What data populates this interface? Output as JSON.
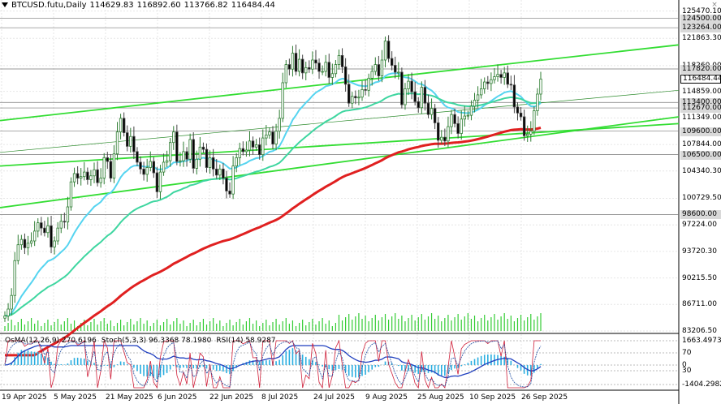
{
  "header": {
    "symbol": "BTCUSD.futu,Daily",
    "open": "114629.83",
    "high": "116892.60",
    "low": "113766.82",
    "close": "116484.44"
  },
  "indicators": {
    "osma": "OsMA(12,26,9) 270.6196",
    "stoch": "Stoch(5,3,3) 96.3368 78.1980",
    "rsi": "RSI(14) 58.9287"
  },
  "price_axis": {
    "ticks": [
      "125470.10",
      "121863.30",
      "118260.00",
      "114859.00",
      "111349.00",
      "107844.00",
      "104340.30",
      "100729.50",
      "97224.00",
      "93720.30",
      "90215.50",
      "86711.00",
      "83206.50"
    ],
    "level_tags": [
      "124500.00",
      "123264.00",
      "117820.00",
      "113400.00",
      "112670.00",
      "109600.00",
      "106500.00",
      "98600.00"
    ],
    "current_price": "116484.44"
  },
  "indicator_axis": {
    "ticks": [
      "1663.4973",
      "70",
      "30",
      "0",
      "-1404.2982"
    ]
  },
  "time_axis": {
    "ticks": [
      "19 Apr 2025",
      "5 May 2025",
      "21 May 2025",
      "6 Jun 2025",
      "22 Jun 2025",
      "8 Jul 2025",
      "24 Jul 2025",
      "9 Aug 2025",
      "25 Aug 2025",
      "10 Sep 2025",
      "26 Sep 2025"
    ]
  },
  "colors": {
    "candle_up": "#2e7d32",
    "candle_down": "#444444",
    "ema_fast": "#55d4f0",
    "ema_mid": "#3ed6a0",
    "ema_slow": "#e02020",
    "channel": "#33dd33",
    "volume": "#33cc33",
    "osma_hist": "#2aaee0",
    "macd_line": "#1f3fbf",
    "stoch_main": "#d0203a",
    "stoch_signal": "#1a4aa0",
    "rsi": "#3aa0d0"
  },
  "chart_data": {
    "type": "candlestick",
    "symbol": "BTCUSD.futu",
    "timeframe": "Daily",
    "ylim": [
      83206.5,
      126500
    ],
    "x_start": "2025-04-19",
    "x_end": "2025-09-30",
    "closes": [
      85200,
      86100,
      87900,
      92500,
      94600,
      95300,
      94200,
      94800,
      95100,
      96400,
      97500,
      96800,
      96200,
      97100,
      94300,
      95100,
      96800,
      97700,
      97600,
      99600,
      102900,
      104000,
      103400,
      103600,
      104200,
      103200,
      103700,
      104500,
      102800,
      103400,
      106100,
      105600,
      103400,
      106600,
      109500,
      111300,
      109400,
      107600,
      108900,
      106900,
      105500,
      104600,
      103900,
      104800,
      105600,
      104100,
      101600,
      104200,
      105500,
      105700,
      108100,
      109500,
      105600,
      105700,
      106900,
      105900,
      108500,
      104700,
      105900,
      107500,
      107200,
      104800,
      106100,
      104600,
      103800,
      104600,
      103400,
      101700,
      101300,
      105000,
      106100,
      107300,
      106900,
      107100,
      108300,
      107500,
      107800,
      106500,
      108700,
      109100,
      109500,
      107900,
      109600,
      111300,
      116000,
      118400,
      117800,
      119900,
      117500,
      119100,
      117300,
      118000,
      117800,
      119000,
      118600,
      117500,
      117500,
      118700,
      116700,
      117200,
      118400,
      119600,
      118100,
      115800,
      113300,
      114200,
      114000,
      114100,
      115100,
      115000,
      116600,
      117500,
      118400,
      116900,
      119000,
      121500,
      119200,
      118300,
      117400,
      117400,
      113100,
      115200,
      116200,
      114800,
      113500,
      112700,
      115400,
      113300,
      111800,
      112600,
      110700,
      108400,
      108800,
      108300,
      110200,
      111800,
      110600,
      109300,
      111200,
      111600,
      111700,
      112900,
      113700,
      114400,
      115200,
      116100,
      115900,
      116400,
      116800,
      117100,
      116700,
      117300,
      115800,
      115700,
      112800,
      112000,
      111500,
      109000,
      109200,
      109600,
      112300,
      114500,
      116484
    ]
  }
}
